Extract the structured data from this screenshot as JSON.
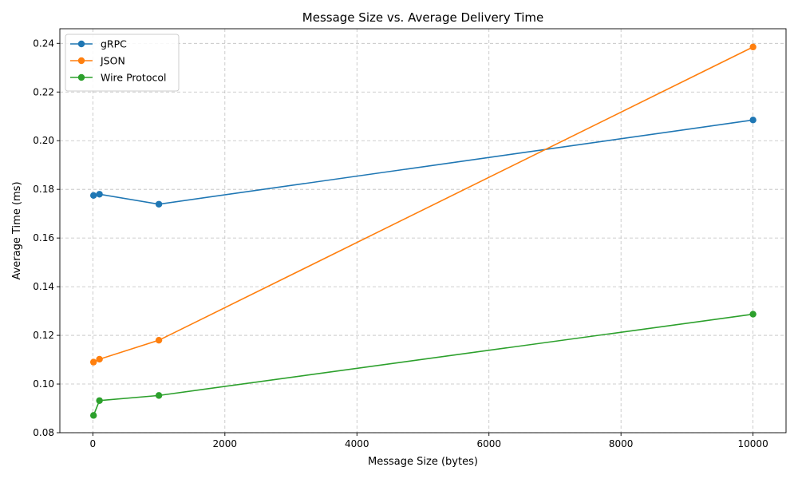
{
  "chart_data": {
    "type": "line",
    "title": "Message Size vs. Average Delivery Time",
    "xlabel": "Message Size (bytes)",
    "ylabel": "Average Time (ms)",
    "x": [
      10,
      100,
      1000,
      10000
    ],
    "xlim": [
      -500,
      10500
    ],
    "ylim": [
      0.08,
      0.246
    ],
    "xticks": [
      0,
      2000,
      4000,
      6000,
      8000,
      10000
    ],
    "yticks": [
      0.08,
      0.1,
      0.12,
      0.14,
      0.16,
      0.18,
      0.2,
      0.22,
      0.24
    ],
    "xtick_labels": [
      "0",
      "2000",
      "4000",
      "6000",
      "8000",
      "10000"
    ],
    "ytick_labels": [
      "0.08",
      "0.10",
      "0.12",
      "0.14",
      "0.16",
      "0.18",
      "0.20",
      "0.22",
      "0.24"
    ],
    "grid": true,
    "legend_position": "top-left",
    "series": [
      {
        "name": "gRPC",
        "color": "#1f77b4",
        "values": [
          0.1775,
          0.178,
          0.1739,
          0.2085
        ]
      },
      {
        "name": "JSON",
        "color": "#ff7f0e",
        "values": [
          0.109,
          0.1102,
          0.118,
          0.2385
        ]
      },
      {
        "name": "Wire Protocol",
        "color": "#2ca02c",
        "values": [
          0.0871,
          0.0932,
          0.0953,
          0.1287
        ]
      }
    ]
  }
}
